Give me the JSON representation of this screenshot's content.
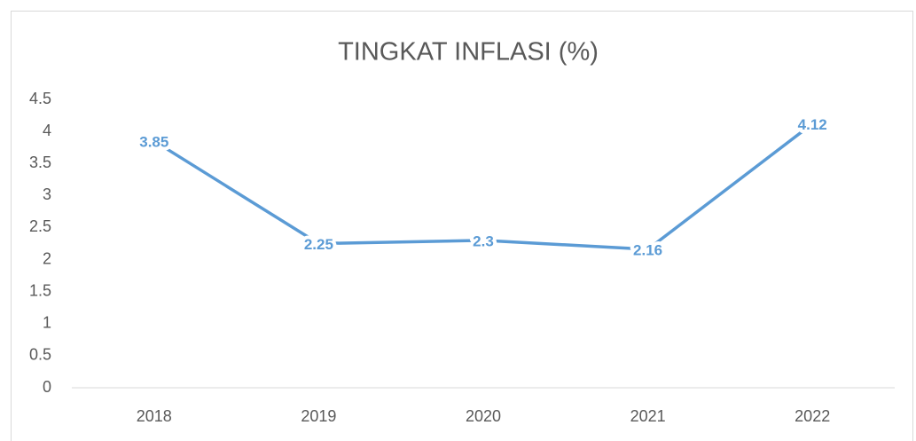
{
  "chart_data": {
    "type": "line",
    "title": "TINGKAT INFLASI (%)",
    "categories": [
      "2018",
      "2019",
      "2020",
      "2021",
      "2022"
    ],
    "series": [
      {
        "name": "Tingkat Inflasi",
        "color": "#5b9bd5",
        "values": [
          3.85,
          2.25,
          2.3,
          2.16,
          4.12
        ]
      }
    ],
    "ylim": [
      0,
      4.5
    ],
    "yticks": [
      0,
      0.5,
      1,
      1.5,
      2,
      2.5,
      3,
      3.5,
      4,
      4.5
    ],
    "grid": false,
    "data_labels": true
  }
}
